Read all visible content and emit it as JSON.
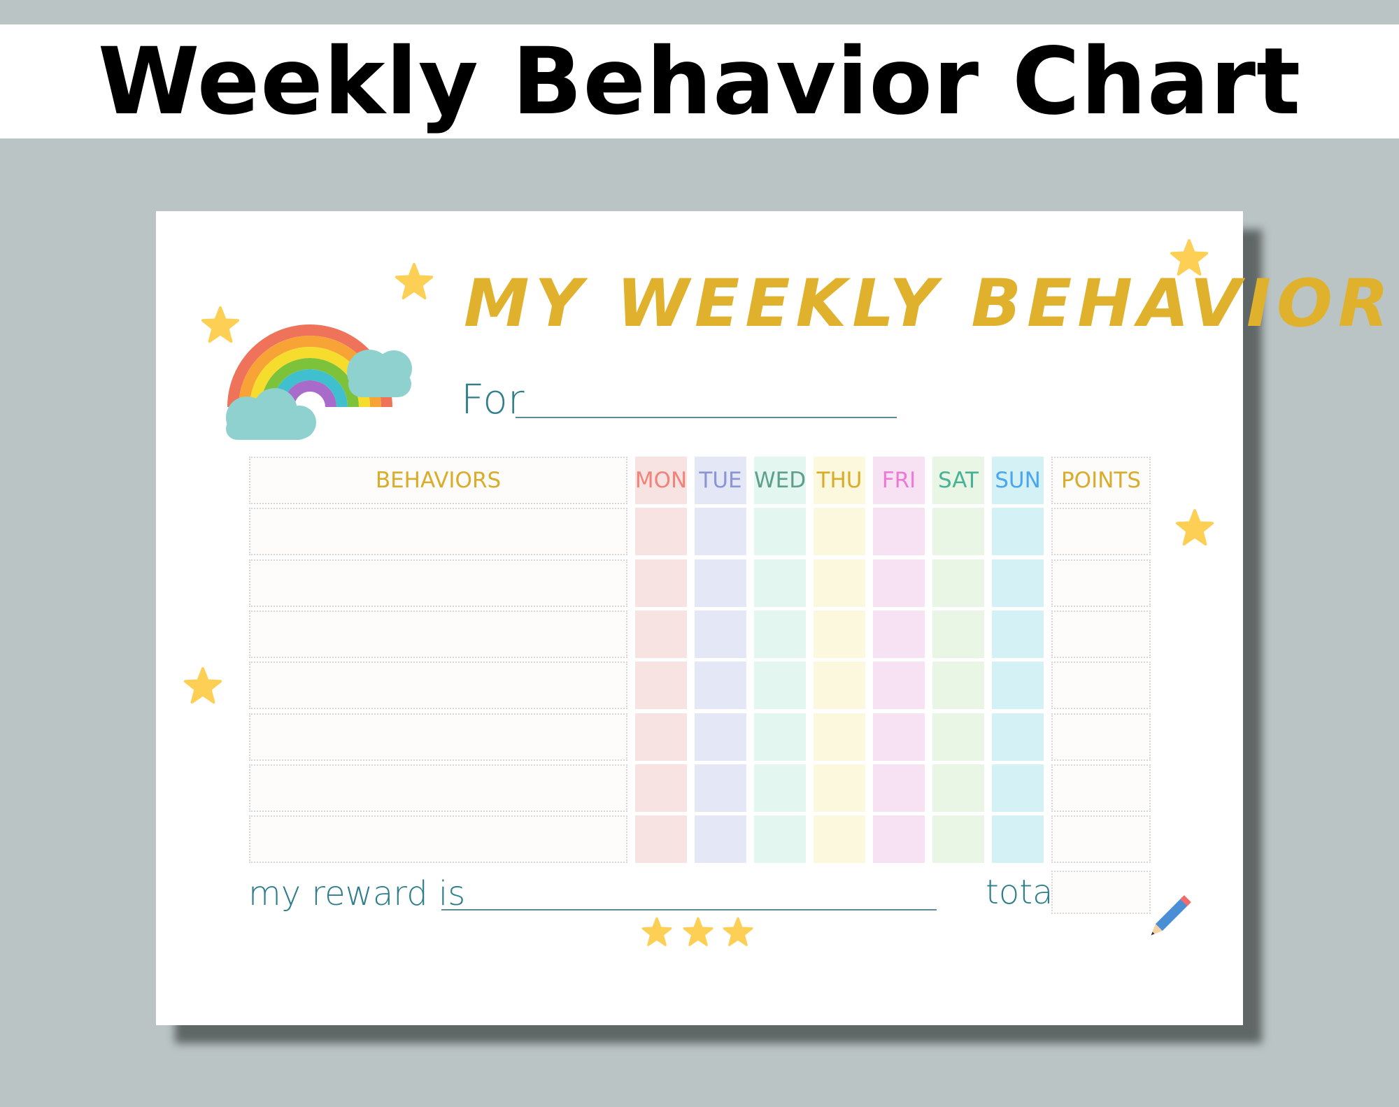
{
  "banner_title": "Weekly Behavior Chart",
  "sheet": {
    "title": "MY WEEKLY BEHAVIOR",
    "for_label": "For",
    "table": {
      "behaviors_header": "BEHAVIORS",
      "days": [
        {
          "label": "MON",
          "text_color": "#f2837a",
          "fill": "#f7e3e1"
        },
        {
          "label": "TUE",
          "text_color": "#8b95d6",
          "fill": "#e3e7f6"
        },
        {
          "label": "WED",
          "text_color": "#5e9e8c",
          "fill": "#e3f6f0"
        },
        {
          "label": "THU",
          "text_color": "#d9ac2a",
          "fill": "#fbf8dd"
        },
        {
          "label": "FRI",
          "text_color": "#ee79d4",
          "fill": "#f6e2f3"
        },
        {
          "label": "SAT",
          "text_color": "#47b396",
          "fill": "#e9f6e5"
        },
        {
          "label": "SUN",
          "text_color": "#4aa6ee",
          "fill": "#d4f1f6"
        }
      ],
      "points_header": "POINTS",
      "header_color": "#d9ac2a"
    },
    "reward_label": "my reward is",
    "total_label": "total:",
    "title_color": "#e0b12c",
    "script_color": "#2f7e8c",
    "decorations": [
      "rainbow-icon",
      "cloud-icon",
      "star-icon",
      "pencil-icon"
    ]
  }
}
